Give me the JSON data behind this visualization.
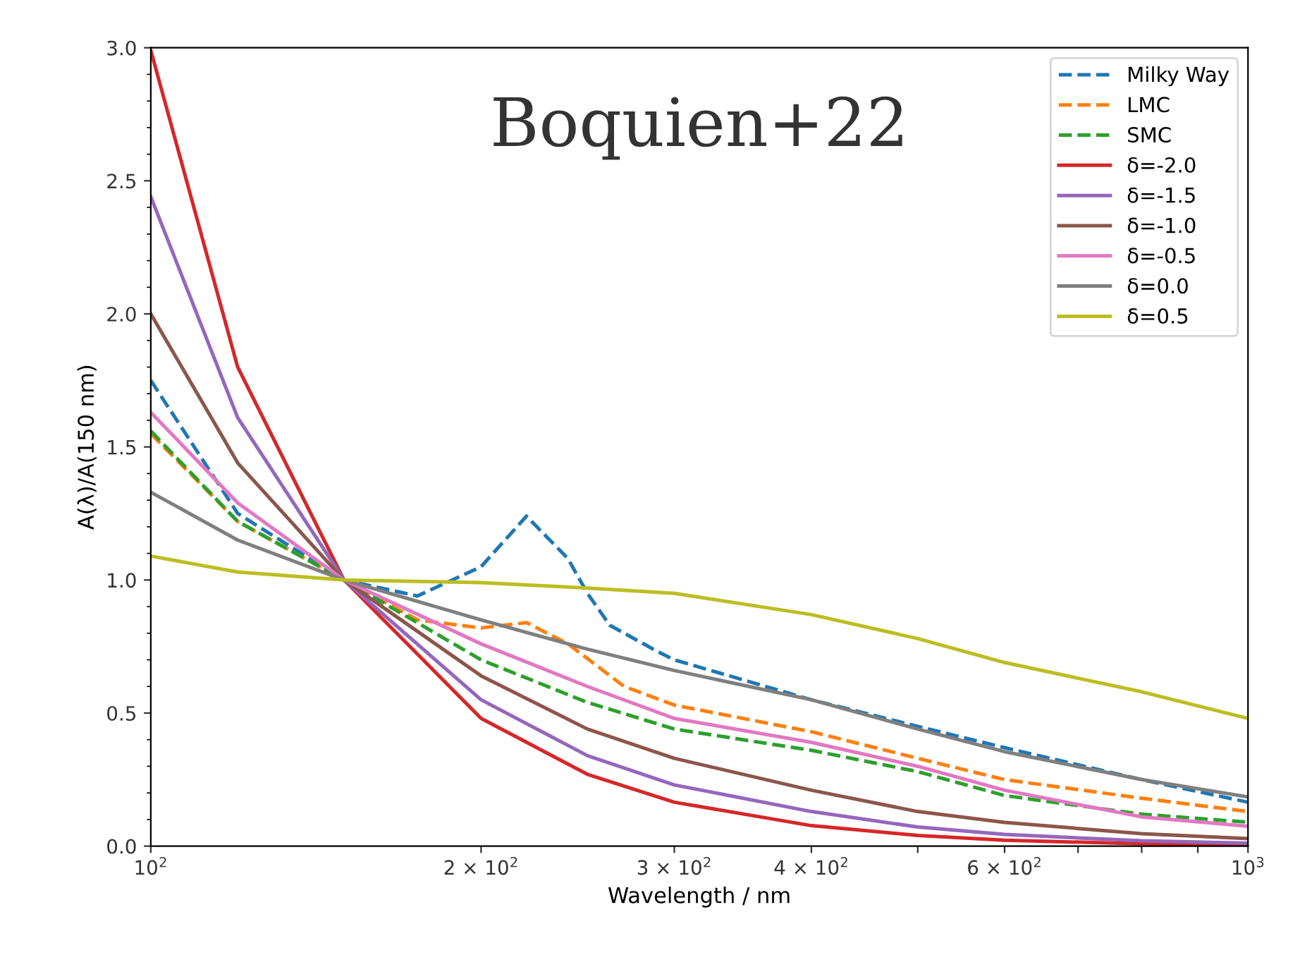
{
  "chart_data": {
    "type": "line",
    "xlabel": "Wavelength / nm",
    "ylabel": "A(λ)/A(150 nm)",
    "log": "x",
    "xlim": [
      100,
      1000
    ],
    "ylim": [
      0.0,
      3.0
    ],
    "xticks": [
      {
        "value": 100,
        "label": "10$^{2}$"
      },
      {
        "value": 200,
        "label": "2 × 10$^{2}$"
      },
      {
        "value": 300,
        "label": "3 × 10$^{2}$"
      },
      {
        "value": 400,
        "label": "4 × 10$^{2}$"
      },
      {
        "value": 500,
        "label": null
      },
      {
        "value": 600,
        "label": "6 × 10$^{2}$"
      },
      {
        "value": 700,
        "label": null
      },
      {
        "value": 800,
        "label": null
      },
      {
        "value": 900,
        "label": null
      },
      {
        "value": 1000,
        "label": "10$^{3}$"
      }
    ],
    "yticks": [
      {
        "value": 0.0,
        "label": "0.0"
      },
      {
        "value": 0.5,
        "label": "0.5"
      },
      {
        "value": 1.0,
        "label": "1.0"
      },
      {
        "value": 1.5,
        "label": "1.5"
      },
      {
        "value": 2.0,
        "label": "2.0"
      },
      {
        "value": 2.5,
        "label": "2.5"
      },
      {
        "value": 3.0,
        "label": "3.0"
      }
    ],
    "grid": false,
    "legend": "top right",
    "marker": "none",
    "annotations": [
      "Boquien+22"
    ],
    "series": [
      {
        "name": "Milky Way",
        "color": "#1f77b4",
        "line_style": "dashed",
        "x": [
          100,
          120,
          150,
          175,
          200,
          220,
          240,
          250,
          262,
          290,
          300,
          400,
          500,
          600,
          800,
          1000
        ],
        "values": [
          1.75,
          1.25,
          1.0,
          0.94,
          1.05,
          1.24,
          1.08,
          0.95,
          0.83,
          0.73,
          0.7,
          0.55,
          0.45,
          0.37,
          0.25,
          0.165
        ]
      },
      {
        "name": "LMC",
        "color": "#ff7f0e",
        "line_style": "dashed",
        "x": [
          100,
          120,
          150,
          175,
          200,
          220,
          240,
          270,
          300,
          400,
          500,
          600,
          800,
          1000
        ],
        "values": [
          1.55,
          1.22,
          1.0,
          0.85,
          0.82,
          0.84,
          0.76,
          0.6,
          0.53,
          0.43,
          0.33,
          0.25,
          0.18,
          0.13
        ]
      },
      {
        "name": "SMC",
        "color": "#2ca02c",
        "line_style": "dashed",
        "x": [
          100,
          120,
          150,
          200,
          250,
          300,
          400,
          500,
          600,
          800,
          1000
        ],
        "values": [
          1.56,
          1.22,
          1.0,
          0.7,
          0.54,
          0.44,
          0.36,
          0.28,
          0.19,
          0.12,
          0.09
        ]
      },
      {
        "name": "δ=-2.0",
        "color": "#d62728",
        "line_style": "solid",
        "x": [
          100,
          120,
          150,
          200,
          250,
          300,
          400,
          500,
          600,
          800,
          1000
        ],
        "values": [
          2.99,
          1.8,
          1.0,
          0.48,
          0.27,
          0.165,
          0.077,
          0.04,
          0.022,
          0.009,
          0.004
        ]
      },
      {
        "name": "δ=-1.5",
        "color": "#9467bd",
        "line_style": "solid",
        "x": [
          100,
          120,
          150,
          200,
          250,
          300,
          400,
          500,
          600,
          800,
          1000
        ],
        "values": [
          2.44,
          1.61,
          1.0,
          0.55,
          0.34,
          0.23,
          0.13,
          0.072,
          0.044,
          0.02,
          0.011
        ]
      },
      {
        "name": "δ=-1.0",
        "color": "#8c564b",
        "line_style": "solid",
        "x": [
          100,
          120,
          150,
          200,
          250,
          300,
          400,
          500,
          600,
          800,
          1000
        ],
        "values": [
          2.0,
          1.44,
          1.0,
          0.64,
          0.44,
          0.33,
          0.21,
          0.13,
          0.089,
          0.047,
          0.028
        ]
      },
      {
        "name": "δ=-0.5",
        "color": "#e377c2",
        "line_style": "solid",
        "x": [
          100,
          120,
          150,
          200,
          250,
          300,
          400,
          500,
          600,
          800,
          1000
        ],
        "values": [
          1.63,
          1.29,
          1.0,
          0.76,
          0.6,
          0.48,
          0.39,
          0.3,
          0.21,
          0.11,
          0.075
        ]
      },
      {
        "name": "δ=0.0",
        "color": "#7f7f7f",
        "line_style": "solid",
        "x": [
          100,
          120,
          150,
          200,
          250,
          300,
          400,
          500,
          600,
          800,
          1000
        ],
        "values": [
          1.33,
          1.15,
          1.0,
          0.85,
          0.74,
          0.66,
          0.55,
          0.44,
          0.355,
          0.25,
          0.185
        ]
      },
      {
        "name": "δ=0.5",
        "color": "#bcbd22",
        "line_style": "solid",
        "x": [
          100,
          120,
          150,
          200,
          250,
          300,
          400,
          500,
          600,
          800,
          1000
        ],
        "values": [
          1.09,
          1.03,
          1.0,
          0.99,
          0.97,
          0.95,
          0.87,
          0.78,
          0.69,
          0.58,
          0.48
        ]
      }
    ]
  }
}
